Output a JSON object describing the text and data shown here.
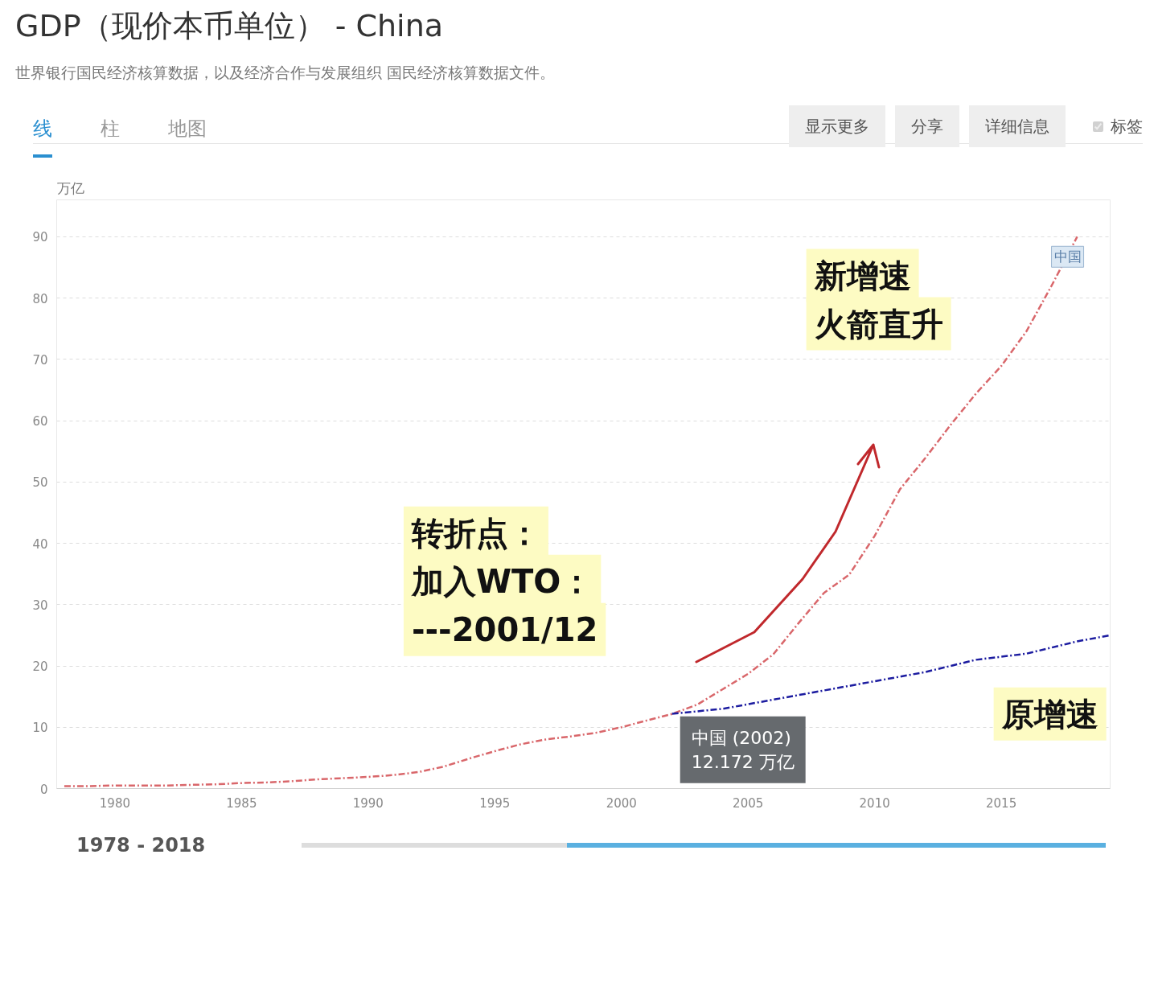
{
  "chart_data": {
    "type": "line",
    "title": "GDP（现价本币单位） - China",
    "subtitle": "世界银行国民经济核算数据，以及经济合作与发展组织 国民经济核算数据文件。",
    "ylabel": "万亿",
    "x": [
      1978,
      1979,
      1980,
      1981,
      1982,
      1983,
      1984,
      1985,
      1986,
      1987,
      1988,
      1989,
      1990,
      1991,
      1992,
      1993,
      1994,
      1995,
      1996,
      1997,
      1998,
      1999,
      2000,
      2001,
      2002,
      2003,
      2004,
      2005,
      2006,
      2007,
      2008,
      2009,
      2010,
      2011,
      2012,
      2013,
      2014,
      2015,
      2016,
      2017,
      2018
    ],
    "series": [
      {
        "name": "中国",
        "color": "#d9676b",
        "line_style": "dashed",
        "values": [
          0.4,
          0.4,
          0.5,
          0.5,
          0.5,
          0.6,
          0.7,
          0.9,
          1.0,
          1.2,
          1.5,
          1.7,
          1.9,
          2.2,
          2.7,
          3.6,
          4.9,
          6.1,
          7.2,
          8.0,
          8.5,
          9.1,
          10.0,
          11.1,
          12.172,
          13.7,
          16.2,
          18.7,
          21.9,
          27.0,
          31.9,
          34.9,
          41.2,
          48.8,
          53.9,
          59.3,
          64.4,
          68.9,
          74.6,
          82.1,
          90.0
        ]
      },
      {
        "color": "#1c1ca0",
        "line_style": "dashed",
        "x": [
          2002,
          2004,
          2006,
          2008,
          2010,
          2012,
          2014,
          2016,
          2018,
          2019.3
        ],
        "values": [
          12.2,
          13,
          14.5,
          16,
          17.5,
          19,
          21,
          22,
          24,
          25
        ]
      }
    ],
    "xlim": [
      1977.7,
      2019.3
    ],
    "ylim": [
      0,
      96
    ],
    "xticks": [
      1980,
      1985,
      1990,
      1995,
      2000,
      2005,
      2010,
      2015
    ],
    "yticks": [
      0,
      10,
      20,
      30,
      40,
      50,
      60,
      70,
      80,
      90
    ],
    "grid": "y",
    "annotations": [
      "新增速",
      "火箭直升",
      "转折点：",
      "加入WTO：",
      "---2001/12",
      "原增速",
      {
        "text": "中国 (2002)\n12.172 万亿",
        "x": 2002,
        "y": 12.172
      },
      "线",
      "柱",
      "地图",
      "显示更多",
      "分享",
      "详细信息",
      "标签",
      "1978 - 2018"
    ]
  }
}
